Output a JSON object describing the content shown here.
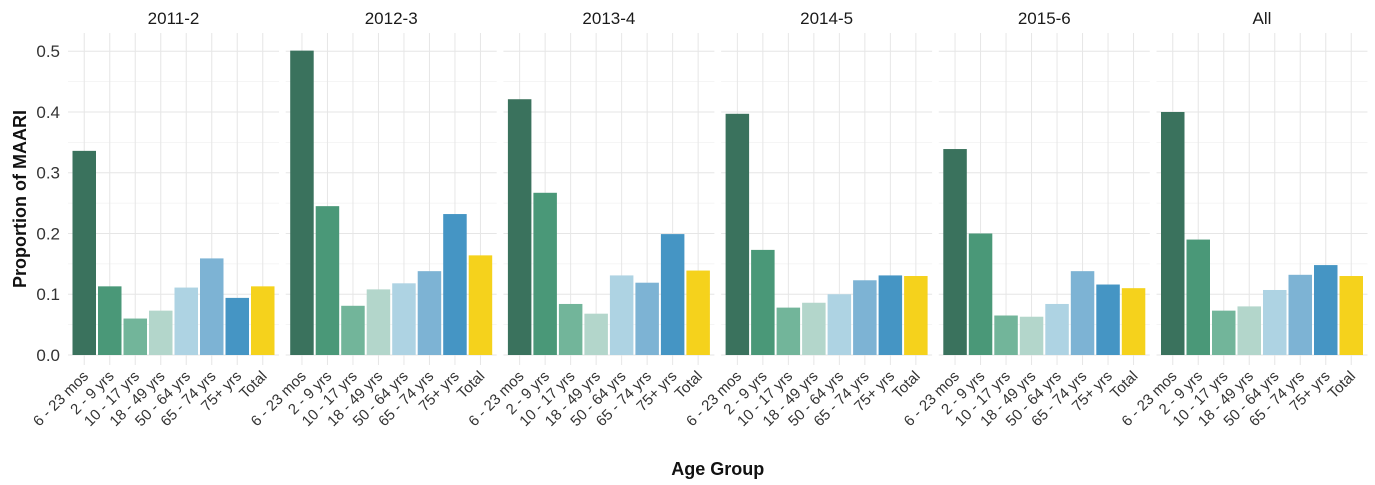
{
  "chart_data": {
    "type": "bar",
    "xlabel": "Age Group",
    "ylabel": "Proportion of MAARI",
    "ylim": [
      0,
      0.53
    ],
    "yticks": [
      "0.0",
      "0.1",
      "0.2",
      "0.3",
      "0.4",
      "0.5"
    ],
    "categories": [
      "6 - 23 mos",
      "2 - 9 yrs",
      "10 - 17 yrs",
      "18 - 49 yrs",
      "50 - 64 yrs",
      "65 - 74 yrs",
      "75+ yrs",
      "Total"
    ],
    "category_colors": [
      "#3a725d",
      "#4a9878",
      "#72b59a",
      "#b3d6cb",
      "#aed3e3",
      "#7db3d4",
      "#4595c4",
      "#f5d21c"
    ],
    "grid": true,
    "legend": "none",
    "panels": [
      {
        "title": "2011-2",
        "values": [
          0.336,
          0.113,
          0.06,
          0.073,
          0.111,
          0.159,
          0.094,
          0.113
        ]
      },
      {
        "title": "2012-3",
        "values": [
          0.501,
          0.245,
          0.081,
          0.108,
          0.118,
          0.138,
          0.232,
          0.164
        ]
      },
      {
        "title": "2013-4",
        "values": [
          0.421,
          0.267,
          0.084,
          0.068,
          0.131,
          0.119,
          0.199,
          0.139
        ]
      },
      {
        "title": "2014-5",
        "values": [
          0.397,
          0.173,
          0.078,
          0.086,
          0.1,
          0.123,
          0.131,
          0.13
        ]
      },
      {
        "title": "2015-6",
        "values": [
          0.339,
          0.2,
          0.065,
          0.063,
          0.084,
          0.138,
          0.116,
          0.11
        ]
      },
      {
        "title": "All",
        "values": [
          0.4,
          0.19,
          0.073,
          0.08,
          0.107,
          0.132,
          0.148,
          0.13
        ]
      }
    ]
  }
}
